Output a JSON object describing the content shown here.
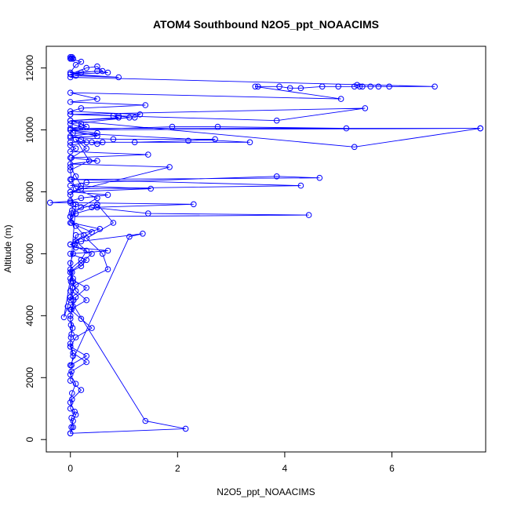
{
  "chart_data": {
    "type": "line",
    "title": "ATOM4 Southbound N2O5_ppt_NOAACIMS",
    "xlabel": "N2O5_ppt_NOAACIMS",
    "ylabel": "Altitude (m)",
    "xlim": [
      -0.45,
      7.75
    ],
    "ylim": [
      -400,
      12700
    ],
    "x_ticks": [
      0,
      2,
      4,
      6
    ],
    "y_ticks": [
      0,
      2000,
      4000,
      6000,
      8000,
      10000,
      12000
    ],
    "grid": false,
    "legend": "none",
    "series": [
      {
        "marker": "open-circle",
        "color": "#0000ff",
        "x": [
          0.0,
          0.05,
          0.02,
          0.08,
          0.0,
          0.03,
          0.1,
          0.0,
          0.02,
          0.05,
          0.0,
          0.01,
          0.04,
          0.0,
          0.02,
          0.06,
          0.0,
          0.01,
          0.03,
          0.0,
          0.05,
          0.08,
          0.1,
          0.55,
          0.02,
          0.0,
          0.03,
          0.5,
          0.8,
          0.3,
          0.6,
          0.7,
          0.1,
          0.0,
          1.4,
          2.15,
          0.0,
          0.02,
          0.05,
          0.1,
          0.0,
          0.03,
          0.2,
          0.0,
          0.02,
          0.3,
          0.05,
          0.0,
          0.02,
          0.01,
          0.0,
          0.05,
          0.1,
          0.3,
          0.0,
          -0.12,
          -0.05,
          0.0,
          0.04,
          0.05,
          0.0,
          0.2,
          0.3,
          0.1,
          0.4,
          0.0,
          0.02,
          0.05,
          0.0,
          0.2,
          0.1,
          0.0,
          0.02,
          0.3,
          0.1,
          0.35,
          0.0,
          0.02,
          0.1,
          0.5,
          0.2,
          0.0,
          0.1,
          0.25,
          0.0,
          0.4,
          0.2,
          0.0,
          0.05,
          0.1,
          0.3,
          0.0,
          0.2,
          0.4,
          0.1,
          0.0,
          0.3,
          0.0,
          1.1,
          1.35,
          0.2,
          0.0,
          0.1,
          0.7,
          0.0,
          0.3,
          0.2,
          0.0,
          0.1,
          0.4,
          1.45,
          4.45,
          0.0,
          0.1,
          0.5,
          2.3,
          0.0,
          -0.38,
          0.0,
          0.2,
          0.7,
          0.0,
          1.5,
          0.0,
          0.3,
          3.85,
          4.65,
          0.0,
          4.3,
          0.2,
          0.0,
          1.85,
          0.0,
          0.5,
          0.0,
          1.45,
          0.0,
          0.1,
          0.0,
          0.3,
          0.2,
          0.0,
          0.5,
          0.0,
          0.3,
          0.2,
          0.0,
          5.3,
          7.65,
          0.0,
          0.05,
          3.35,
          0.0,
          0.4,
          0.5,
          0.6,
          1.2,
          2.2,
          2.7,
          0.8,
          0.0,
          0.5,
          0.0,
          1.9,
          2.75,
          5.15,
          7.65,
          0.0,
          0.2,
          0.0,
          1.1,
          0.9,
          0.0,
          3.85,
          5.5,
          0.0,
          0.8,
          0.9,
          0.0,
          1.2,
          1.3,
          0.0,
          0.2,
          1.4,
          0.0,
          0.5,
          0.0,
          5.05,
          3.45,
          3.5,
          3.9,
          4.1,
          4.3,
          4.7,
          5.0,
          5.3,
          5.35,
          5.4,
          5.45,
          5.6,
          5.75,
          5.95,
          6.8,
          0.0,
          0.1,
          0.9,
          0.0,
          0.2,
          0.5,
          0.7,
          0.0,
          0.3,
          0.5,
          0.6,
          0.0,
          0.1,
          0.2,
          0.0,
          0.02,
          0.05,
          0.0,
          0.03,
          0.05
        ],
        "y": [
          200,
          400,
          700,
          900,
          1200,
          1500,
          1800,
          2100,
          2400,
          2700,
          3000,
          3300,
          3600,
          3900,
          4200,
          4500,
          4800,
          5100,
          5400,
          5700,
          6000,
          6300,
          6600,
          6800,
          7000,
          7200,
          7400,
          7600,
          7000,
          6500,
          6000,
          5500,
          5000,
          4500,
          600,
          350,
          200,
          400,
          600,
          800,
          1000,
          1300,
          1600,
          1900,
          2200,
          2500,
          2800,
          3100,
          3400,
          3700,
          4000,
          4300,
          4600,
          4900,
          5200,
          3950,
          4300,
          4600,
          4900,
          5200,
          5500,
          5800,
          6100,
          6400,
          6700,
          7000,
          7300,
          7600,
          7900,
          8200,
          8500,
          8800,
          9100,
          9400,
          9700,
          9000,
          8700,
          8400,
          8100,
          7800,
          7500,
          7200,
          6900,
          6600,
          6300,
          6000,
          5700,
          5400,
          5100,
          4800,
          4500,
          4200,
          3900,
          3600,
          3300,
          3000,
          2700,
          2400,
          6550,
          6650,
          6400,
          6300,
          6200,
          6100,
          6000,
          5800,
          5600,
          5400,
          7600,
          7500,
          7300,
          7250,
          7200,
          7300,
          7500,
          7600,
          7650,
          7650,
          7700,
          7800,
          7900,
          8000,
          8100,
          8200,
          8300,
          8500,
          8450,
          8400,
          8200,
          8100,
          8000,
          8800,
          8900,
          9000,
          9100,
          9200,
          9300,
          9400,
          9500,
          9600,
          9700,
          9800,
          9900,
          10000,
          10100,
          10200,
          10300,
          9450,
          10050,
          10000,
          9900,
          9600,
          9600,
          9600,
          9550,
          9600,
          9600,
          9650,
          9700,
          9700,
          9750,
          9800,
          10000,
          10100,
          10100,
          10050,
          10050,
          10050,
          10100,
          10200,
          10400,
          10450,
          10500,
          10300,
          10700,
          10500,
          10450,
          10400,
          10300,
          10400,
          10500,
          10600,
          10700,
          10800,
          10900,
          11000,
          11200,
          11000,
          11400,
          11400,
          11400,
          11350,
          11350,
          11400,
          11400,
          11400,
          11450,
          11400,
          11400,
          11400,
          11400,
          11400,
          11400,
          11700,
          11750,
          11700,
          11800,
          11850,
          11900,
          11850,
          11800,
          12000,
          12050,
          11900,
          11850,
          12100,
          12200,
          12300,
          12300,
          12300,
          12350,
          12350,
          12300
        ]
      }
    ]
  }
}
